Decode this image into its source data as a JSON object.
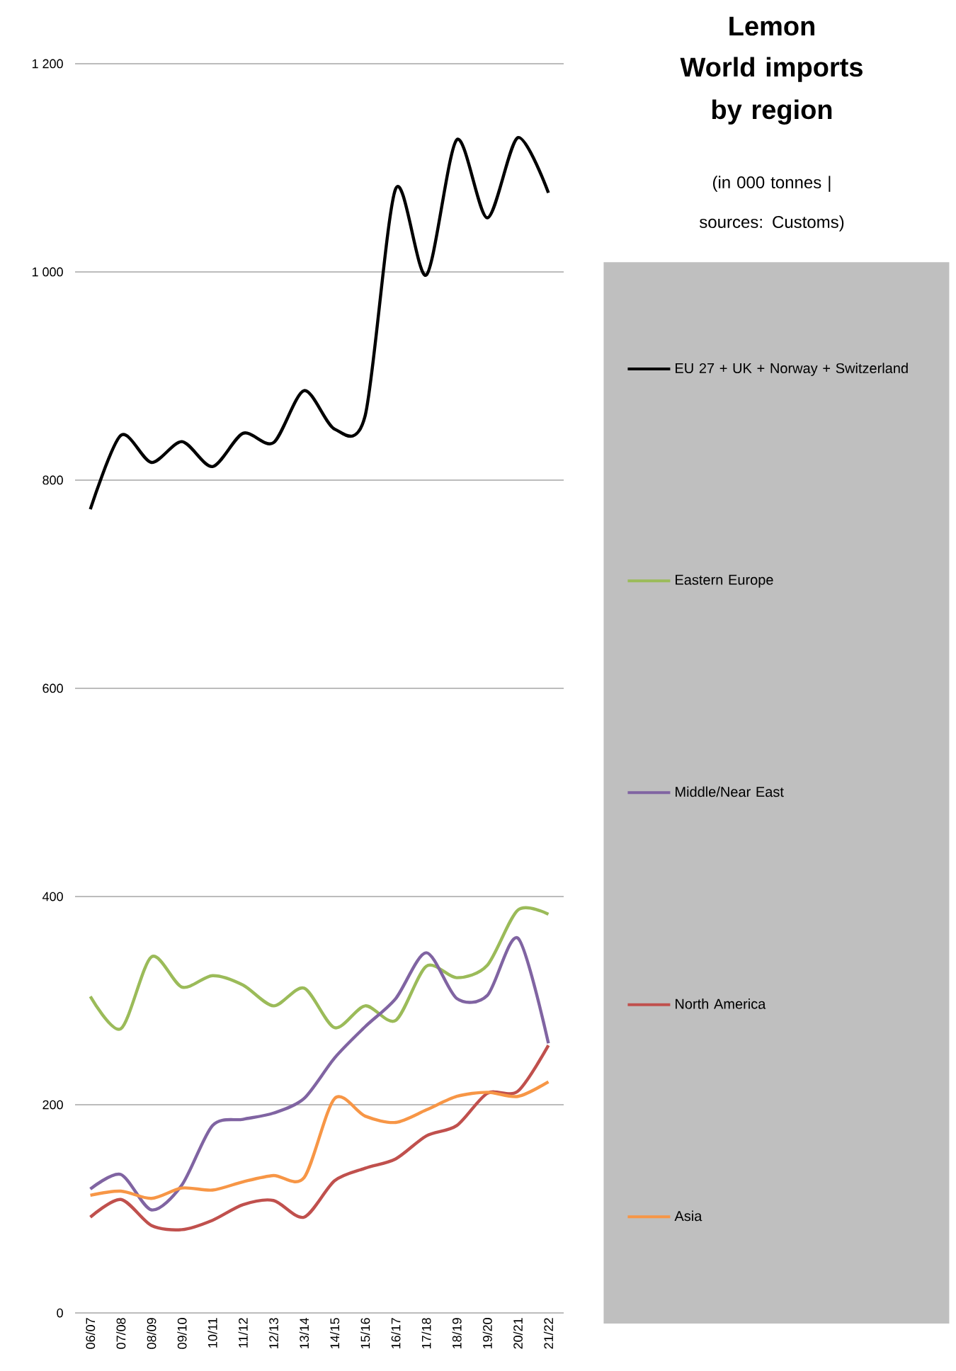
{
  "chart_data": {
    "type": "line",
    "title": "Lemon",
    "subtitle": "World imports by region",
    "annotations": [
      "(in 000 tonnes | sources: Customs)"
    ],
    "categories": [
      "06/07",
      "07/08",
      "08/09",
      "09/10",
      "10/11",
      "11/12",
      "12/13",
      "13/14",
      "14/15",
      "15/16",
      "16/17",
      "17/18",
      "18/19",
      "19/20",
      "20/21",
      "21/22"
    ],
    "series": [
      {
        "name": "EU 27 + UK + Norway + Switzerland",
        "color": "#000000",
        "values": [
          772,
          843,
          817,
          837,
          813,
          845,
          836,
          886,
          849,
          862,
          1080,
          997,
          1127,
          1052,
          1129,
          1076
        ]
      },
      {
        "name": "Eastern Europe",
        "color": "#9bbb59",
        "values": [
          304,
          273,
          342,
          313,
          324,
          315,
          295,
          312,
          274,
          295,
          281,
          333,
          322,
          334,
          387,
          383
        ]
      },
      {
        "name": "Middle/Near East",
        "color": "#8064a2",
        "values": [
          119,
          133,
          99,
          123,
          180,
          186,
          192,
          206,
          245,
          275,
          302,
          346,
          302,
          305,
          360,
          259
        ]
      },
      {
        "name": "North America",
        "color": "#c0504d",
        "values": [
          92,
          109,
          84,
          80,
          89,
          104,
          108,
          92,
          127,
          139,
          148,
          170,
          180,
          211,
          213,
          257
        ]
      },
      {
        "name": "Asia",
        "color": "#f79646",
        "values": [
          113,
          117,
          110,
          120,
          118,
          126,
          132,
          130,
          206,
          189,
          183,
          195,
          208,
          212,
          208,
          222
        ]
      }
    ],
    "ylim": [
      0,
      1200
    ],
    "yticks": [
      0,
      200,
      400,
      600,
      800,
      {
        "value": 1000,
        "label": "1 000"
      },
      {
        "value": 1200,
        "label": "1 200"
      }
    ],
    "grid": "y",
    "legend": "right",
    "marker": "none",
    "line_style": "solid"
  }
}
